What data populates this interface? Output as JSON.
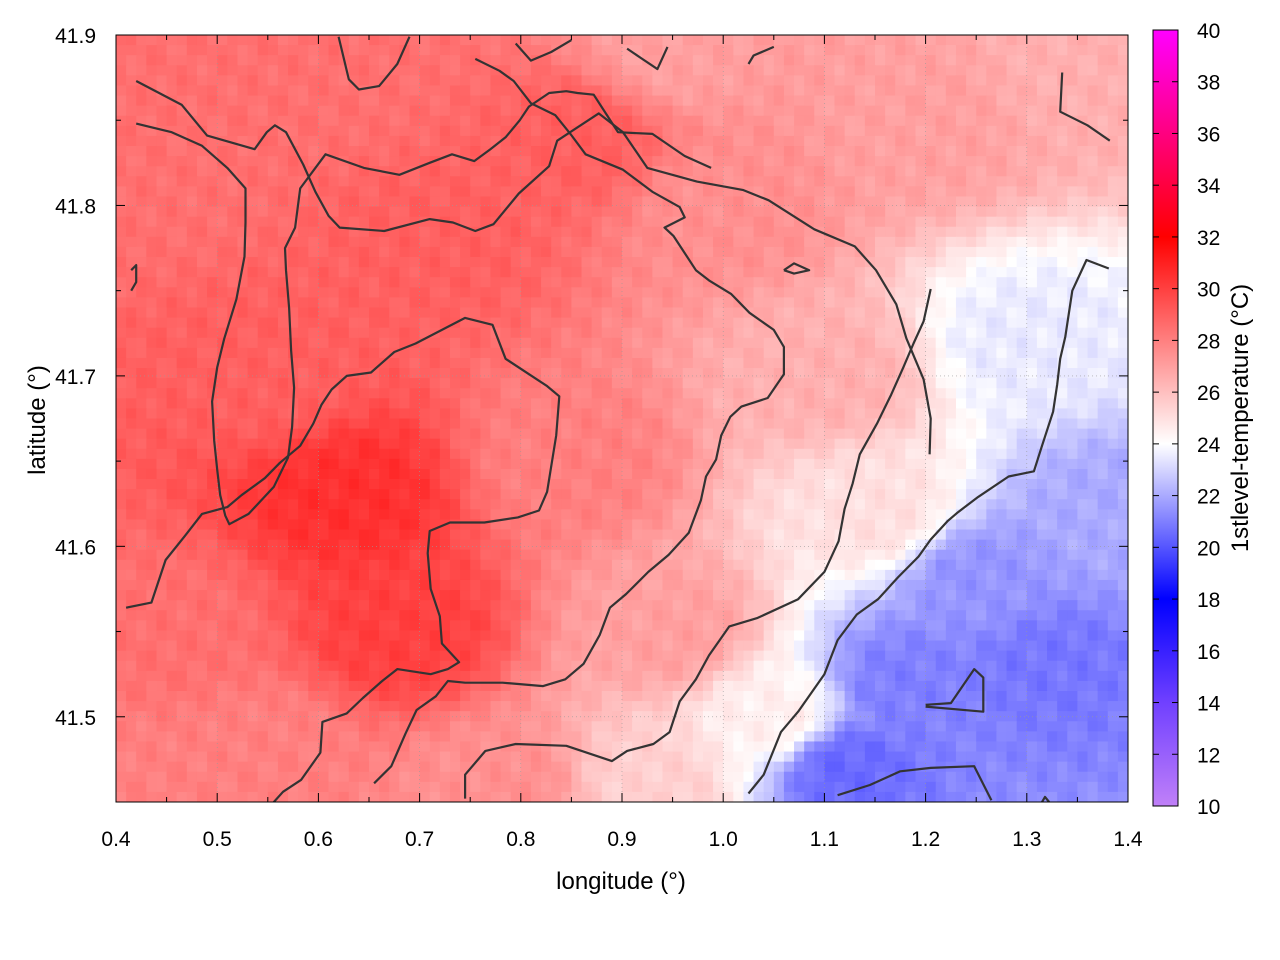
{
  "chart_data": {
    "type": "heatmap",
    "title": "",
    "xlabel": "longitude (°)",
    "ylabel": "latitude (°)",
    "colorbar_label": "1stlevel-temperature (°C)",
    "xlim": [
      0.4,
      1.4
    ],
    "ylim": [
      41.45,
      41.9
    ],
    "x_ticks": [
      0.4,
      0.5,
      0.6,
      0.7,
      0.8,
      0.9,
      1.0,
      1.1,
      1.2,
      1.3,
      1.4
    ],
    "x_tick_labels": [
      "0.4",
      "0.5",
      "0.6",
      "0.7",
      "0.8",
      "0.9",
      "1.0",
      "1.1",
      "1.2",
      "1.3",
      "1.4"
    ],
    "y_ticks": [
      41.5,
      41.6,
      41.7,
      41.8,
      41.9
    ],
    "y_tick_labels": [
      "41.5",
      "41.6",
      "41.7",
      "41.8",
      "41.9"
    ],
    "colorbar_range": [
      10,
      40
    ],
    "colorbar_ticks": [
      10,
      12,
      14,
      16,
      18,
      20,
      22,
      24,
      26,
      28,
      30,
      32,
      34,
      36,
      38,
      40
    ],
    "colorbar_tick_labels": [
      "10",
      "12",
      "14",
      "16",
      "18",
      "20",
      "22",
      "24",
      "26",
      "28",
      "30",
      "32",
      "34",
      "36",
      "38",
      "40"
    ],
    "colormap_stops": [
      {
        "value": 10,
        "color": "#c080f8"
      },
      {
        "value": 14,
        "color": "#7040ff"
      },
      {
        "value": 18,
        "color": "#0000ff"
      },
      {
        "value": 24,
        "color": "#ffffff"
      },
      {
        "value": 32,
        "color": "#ff0000"
      },
      {
        "value": 36,
        "color": "#ff0080"
      },
      {
        "value": 40,
        "color": "#ff00ff"
      }
    ],
    "grid": true,
    "legend": "none",
    "temperature_field": {
      "description_values_in": "°C",
      "anchors": [
        {
          "lon": 0.63,
          "lat": 41.63,
          "temp": 30.5
        },
        {
          "lon": 0.68,
          "lat": 41.55,
          "temp": 30.0
        },
        {
          "lon": 0.55,
          "lat": 41.7,
          "temp": 29.0
        },
        {
          "lon": 0.72,
          "lat": 41.78,
          "temp": 29.0
        },
        {
          "lon": 0.86,
          "lat": 41.84,
          "temp": 29.0
        },
        {
          "lon": 0.45,
          "lat": 41.55,
          "temp": 28.5
        },
        {
          "lon": 0.45,
          "lat": 41.82,
          "temp": 28.5
        },
        {
          "lon": 0.85,
          "lat": 41.65,
          "temp": 28.0
        },
        {
          "lon": 0.55,
          "lat": 41.48,
          "temp": 28.0
        },
        {
          "lon": 0.95,
          "lat": 41.55,
          "temp": 27.0
        },
        {
          "lon": 1.0,
          "lat": 41.8,
          "temp": 27.5
        },
        {
          "lon": 1.1,
          "lat": 41.7,
          "temp": 26.5
        },
        {
          "lon": 1.2,
          "lat": 41.85,
          "temp": 27.0
        },
        {
          "lon": 1.35,
          "lat": 41.88,
          "temp": 26.5
        },
        {
          "lon": 1.15,
          "lat": 41.62,
          "temp": 25.0
        },
        {
          "lon": 1.3,
          "lat": 41.72,
          "temp": 23.5
        },
        {
          "lon": 1.05,
          "lat": 41.5,
          "temp": 24.5
        },
        {
          "lon": 1.18,
          "lat": 41.52,
          "temp": 21.0
        },
        {
          "lon": 1.12,
          "lat": 41.47,
          "temp": 20.5
        },
        {
          "lon": 1.32,
          "lat": 41.53,
          "temp": 20.8
        },
        {
          "lon": 1.25,
          "lat": 41.58,
          "temp": 21.5
        },
        {
          "lon": 1.38,
          "lat": 41.62,
          "temp": 22.0
        },
        {
          "lon": 0.93,
          "lat": 41.46,
          "temp": 25.5
        },
        {
          "lon": 0.4,
          "lat": 41.46,
          "temp": 28.0
        },
        {
          "lon": 0.78,
          "lat": 41.46,
          "temp": 27.5
        },
        {
          "lon": 0.62,
          "lat": 41.88,
          "temp": 28.5
        },
        {
          "lon": 0.95,
          "lat": 41.89,
          "temp": 27.0
        }
      ]
    },
    "contours": [
      [
        [
          0.42,
          41.873
        ],
        [
          0.465,
          41.859
        ],
        [
          0.49,
          41.841
        ],
        [
          0.537,
          41.833
        ],
        [
          0.549,
          41.843
        ],
        [
          0.557,
          41.847
        ],
        [
          0.568,
          41.843
        ],
        [
          0.585,
          41.824
        ],
        [
          0.597,
          41.808
        ],
        [
          0.61,
          41.794
        ],
        [
          0.621,
          41.787
        ],
        [
          0.665,
          41.785
        ],
        [
          0.71,
          41.792
        ],
        [
          0.733,
          41.79
        ],
        [
          0.755,
          41.785
        ],
        [
          0.773,
          41.789
        ],
        [
          0.798,
          41.807
        ],
        [
          0.828,
          41.823
        ],
        [
          0.836,
          41.838
        ],
        [
          0.877,
          41.854
        ],
        [
          0.901,
          41.843
        ],
        [
          0.925,
          41.822
        ],
        [
          0.974,
          41.814
        ],
        [
          1.02,
          41.809
        ],
        [
          1.045,
          41.803
        ],
        [
          1.09,
          41.786
        ],
        [
          1.13,
          41.776
        ],
        [
          1.151,
          41.762
        ],
        [
          1.171,
          41.742
        ],
        [
          1.181,
          41.722
        ],
        [
          1.198,
          41.698
        ],
        [
          1.205,
          41.675
        ],
        [
          1.204,
          41.654
        ]
      ],
      [
        [
          0.42,
          41.848
        ],
        [
          0.455,
          41.843
        ],
        [
          0.485,
          41.835
        ],
        [
          0.51,
          41.822
        ],
        [
          0.528,
          41.81
        ],
        [
          0.528,
          41.79
        ],
        [
          0.527,
          41.77
        ],
        [
          0.519,
          41.745
        ],
        [
          0.507,
          41.722
        ],
        [
          0.5,
          41.705
        ],
        [
          0.495,
          41.685
        ],
        [
          0.497,
          41.662
        ],
        [
          0.5,
          41.645
        ],
        [
          0.503,
          41.63
        ],
        [
          0.508,
          41.618
        ],
        [
          0.512,
          41.613
        ],
        [
          0.531,
          41.619
        ],
        [
          0.556,
          41.635
        ],
        [
          0.57,
          41.652
        ],
        [
          0.574,
          41.67
        ],
        [
          0.576,
          41.693
        ],
        [
          0.573,
          41.715
        ],
        [
          0.571,
          41.74
        ],
        [
          0.568,
          41.762
        ],
        [
          0.567,
          41.775
        ],
        [
          0.577,
          41.787
        ],
        [
          0.582,
          41.81
        ],
        [
          0.607,
          41.83
        ],
        [
          0.645,
          41.822
        ],
        [
          0.68,
          41.818
        ],
        [
          0.71,
          41.825
        ],
        [
          0.732,
          41.83
        ],
        [
          0.754,
          41.826
        ],
        [
          0.77,
          41.833
        ],
        [
          0.785,
          41.84
        ],
        [
          0.799,
          41.85
        ],
        [
          0.808,
          41.858
        ],
        [
          0.828,
          41.866
        ],
        [
          0.845,
          41.867
        ],
        [
          0.856,
          41.866
        ],
        [
          0.872,
          41.865
        ],
        [
          0.884,
          41.854
        ],
        [
          0.896,
          41.843
        ],
        [
          0.93,
          41.842
        ],
        [
          0.962,
          41.829
        ],
        [
          0.988,
          41.822
        ]
      ],
      [
        [
          0.415,
          41.762
        ],
        [
          0.42,
          41.765
        ],
        [
          0.42,
          41.755
        ],
        [
          0.415,
          41.75
        ]
      ],
      [
        [
          0.41,
          41.564
        ],
        [
          0.435,
          41.567
        ],
        [
          0.449,
          41.592
        ],
        [
          0.468,
          41.606
        ],
        [
          0.485,
          41.619
        ],
        [
          0.51,
          41.623
        ],
        [
          0.524,
          41.63
        ],
        [
          0.547,
          41.64
        ],
        [
          0.562,
          41.649
        ],
        [
          0.582,
          41.659
        ],
        [
          0.595,
          41.672
        ],
        [
          0.603,
          41.683
        ],
        [
          0.613,
          41.692
        ],
        [
          0.628,
          41.7
        ],
        [
          0.652,
          41.702
        ],
        [
          0.675,
          41.714
        ],
        [
          0.696,
          41.719
        ],
        [
          0.722,
          41.727
        ],
        [
          0.745,
          41.734
        ],
        [
          0.772,
          41.73
        ],
        [
          0.785,
          41.71
        ],
        [
          0.826,
          41.694
        ],
        [
          0.838,
          41.688
        ],
        [
          0.835,
          41.665
        ],
        [
          0.826,
          41.632
        ],
        [
          0.818,
          41.621
        ],
        [
          0.797,
          41.617
        ],
        [
          0.764,
          41.614
        ],
        [
          0.73,
          41.614
        ],
        [
          0.71,
          41.609
        ],
        [
          0.708,
          41.596
        ],
        [
          0.711,
          41.575
        ],
        [
          0.72,
          41.559
        ],
        [
          0.722,
          41.543
        ],
        [
          0.739,
          41.532
        ],
        [
          0.728,
          41.528
        ],
        [
          0.711,
          41.525
        ],
        [
          0.678,
          41.528
        ],
        [
          0.663,
          41.521
        ],
        [
          0.644,
          41.511
        ],
        [
          0.628,
          41.502
        ],
        [
          0.604,
          41.497
        ],
        [
          0.602,
          41.479
        ],
        [
          0.583,
          41.463
        ],
        [
          0.565,
          41.456
        ],
        [
          0.553,
          41.448
        ],
        [
          0.522,
          41.439
        ]
      ],
      [
        [
          0.655,
          41.461
        ],
        [
          0.672,
          41.471
        ],
        [
          0.686,
          41.49
        ],
        [
          0.697,
          41.504
        ],
        [
          0.716,
          41.512
        ],
        [
          0.728,
          41.521
        ],
        [
          0.745,
          41.52
        ],
        [
          0.782,
          41.52
        ],
        [
          0.822,
          41.518
        ],
        [
          0.844,
          41.522
        ],
        [
          0.862,
          41.531
        ],
        [
          0.878,
          41.548
        ],
        [
          0.888,
          41.564
        ],
        [
          0.904,
          41.572
        ],
        [
          0.926,
          41.585
        ],
        [
          0.946,
          41.595
        ],
        [
          0.966,
          41.608
        ],
        [
          0.978,
          41.627
        ],
        [
          0.983,
          41.641
        ],
        [
          0.993,
          41.651
        ],
        [
          0.998,
          41.665
        ],
        [
          1.007,
          41.676
        ],
        [
          1.018,
          41.682
        ],
        [
          1.044,
          41.687
        ],
        [
          1.06,
          41.701
        ],
        [
          1.06,
          41.717
        ],
        [
          1.05,
          41.727
        ],
        [
          1.026,
          41.737
        ],
        [
          1.008,
          41.748
        ],
        [
          0.986,
          41.756
        ],
        [
          0.973,
          41.762
        ],
        [
          0.951,
          41.782
        ],
        [
          0.942,
          41.787
        ],
        [
          0.962,
          41.793
        ],
        [
          0.957,
          41.799
        ],
        [
          0.93,
          41.808
        ],
        [
          0.901,
          41.821
        ],
        [
          0.864,
          41.83
        ],
        [
          0.849,
          41.842
        ],
        [
          0.834,
          41.853
        ],
        [
          0.81,
          41.86
        ],
        [
          0.793,
          41.873
        ],
        [
          0.779,
          41.879
        ],
        [
          0.755,
          41.886
        ]
      ],
      [
        [
          0.745,
          41.452
        ],
        [
          0.745,
          41.466
        ],
        [
          0.765,
          41.48
        ],
        [
          0.795,
          41.484
        ],
        [
          0.845,
          41.483
        ],
        [
          0.89,
          41.474
        ],
        [
          0.905,
          41.48
        ],
        [
          0.931,
          41.484
        ],
        [
          0.947,
          41.491
        ],
        [
          0.957,
          41.509
        ],
        [
          0.973,
          41.522
        ],
        [
          0.986,
          41.536
        ],
        [
          1.006,
          41.553
        ],
        [
          1.034,
          41.558
        ],
        [
          1.074,
          41.569
        ],
        [
          1.1,
          41.585
        ],
        [
          1.114,
          41.603
        ],
        [
          1.12,
          41.622
        ],
        [
          1.128,
          41.637
        ],
        [
          1.135,
          41.654
        ],
        [
          1.152,
          41.672
        ],
        [
          1.166,
          41.689
        ],
        [
          1.178,
          41.705
        ],
        [
          1.188,
          41.719
        ],
        [
          1.198,
          41.732
        ],
        [
          1.205,
          41.751
        ]
      ],
      [
        [
          1.06,
          41.762
        ],
        [
          1.07,
          41.766
        ],
        [
          1.085,
          41.762
        ],
        [
          1.07,
          41.76
        ],
        [
          1.06,
          41.762
        ]
      ],
      [
        [
          0.62,
          41.899
        ],
        [
          0.63,
          41.874
        ],
        [
          0.64,
          41.868
        ],
        [
          0.66,
          41.87
        ],
        [
          0.678,
          41.883
        ],
        [
          0.69,
          41.899
        ]
      ],
      [
        [
          0.795,
          41.895
        ],
        [
          0.81,
          41.885
        ],
        [
          0.83,
          41.89
        ],
        [
          0.85,
          41.897
        ]
      ],
      [
        [
          0.905,
          41.892
        ],
        [
          0.92,
          41.886
        ],
        [
          0.935,
          41.88
        ],
        [
          0.945,
          41.893
        ]
      ],
      [
        [
          1.025,
          41.883
        ],
        [
          1.03,
          41.888
        ],
        [
          1.05,
          41.893
        ]
      ],
      [
        [
          1.335,
          41.878
        ],
        [
          1.333,
          41.855
        ],
        [
          1.36,
          41.847
        ],
        [
          1.382,
          41.838
        ]
      ],
      [
        [
          1.025,
          41.455
        ],
        [
          1.04,
          41.466
        ],
        [
          1.057,
          41.491
        ],
        [
          1.074,
          41.503
        ],
        [
          1.1,
          41.525
        ],
        [
          1.113,
          41.545
        ],
        [
          1.132,
          41.56
        ],
        [
          1.153,
          41.569
        ],
        [
          1.173,
          41.582
        ],
        [
          1.193,
          41.594
        ],
        [
          1.205,
          41.604
        ],
        [
          1.222,
          41.615
        ],
        [
          1.232,
          41.62
        ],
        [
          1.252,
          41.629
        ],
        [
          1.282,
          41.641
        ],
        [
          1.307,
          41.644
        ],
        [
          1.315,
          41.659
        ],
        [
          1.326,
          41.679
        ],
        [
          1.33,
          41.695
        ],
        [
          1.333,
          41.71
        ],
        [
          1.338,
          41.723
        ],
        [
          1.345,
          41.75
        ],
        [
          1.359,
          41.768
        ],
        [
          1.381,
          41.763
        ]
      ],
      [
        [
          1.2,
          41.507
        ],
        [
          1.225,
          41.508
        ],
        [
          1.248,
          41.528
        ],
        [
          1.257,
          41.523
        ],
        [
          1.257,
          41.503
        ],
        [
          1.2,
          41.506
        ]
      ],
      [
        [
          1.113,
          41.454
        ],
        [
          1.145,
          41.46
        ],
        [
          1.175,
          41.468
        ],
        [
          1.205,
          41.47
        ],
        [
          1.248,
          41.471
        ],
        [
          1.265,
          41.451
        ]
      ],
      [
        [
          1.315,
          41.45
        ],
        [
          1.318,
          41.453
        ],
        [
          1.322,
          41.45
        ]
      ]
    ]
  }
}
